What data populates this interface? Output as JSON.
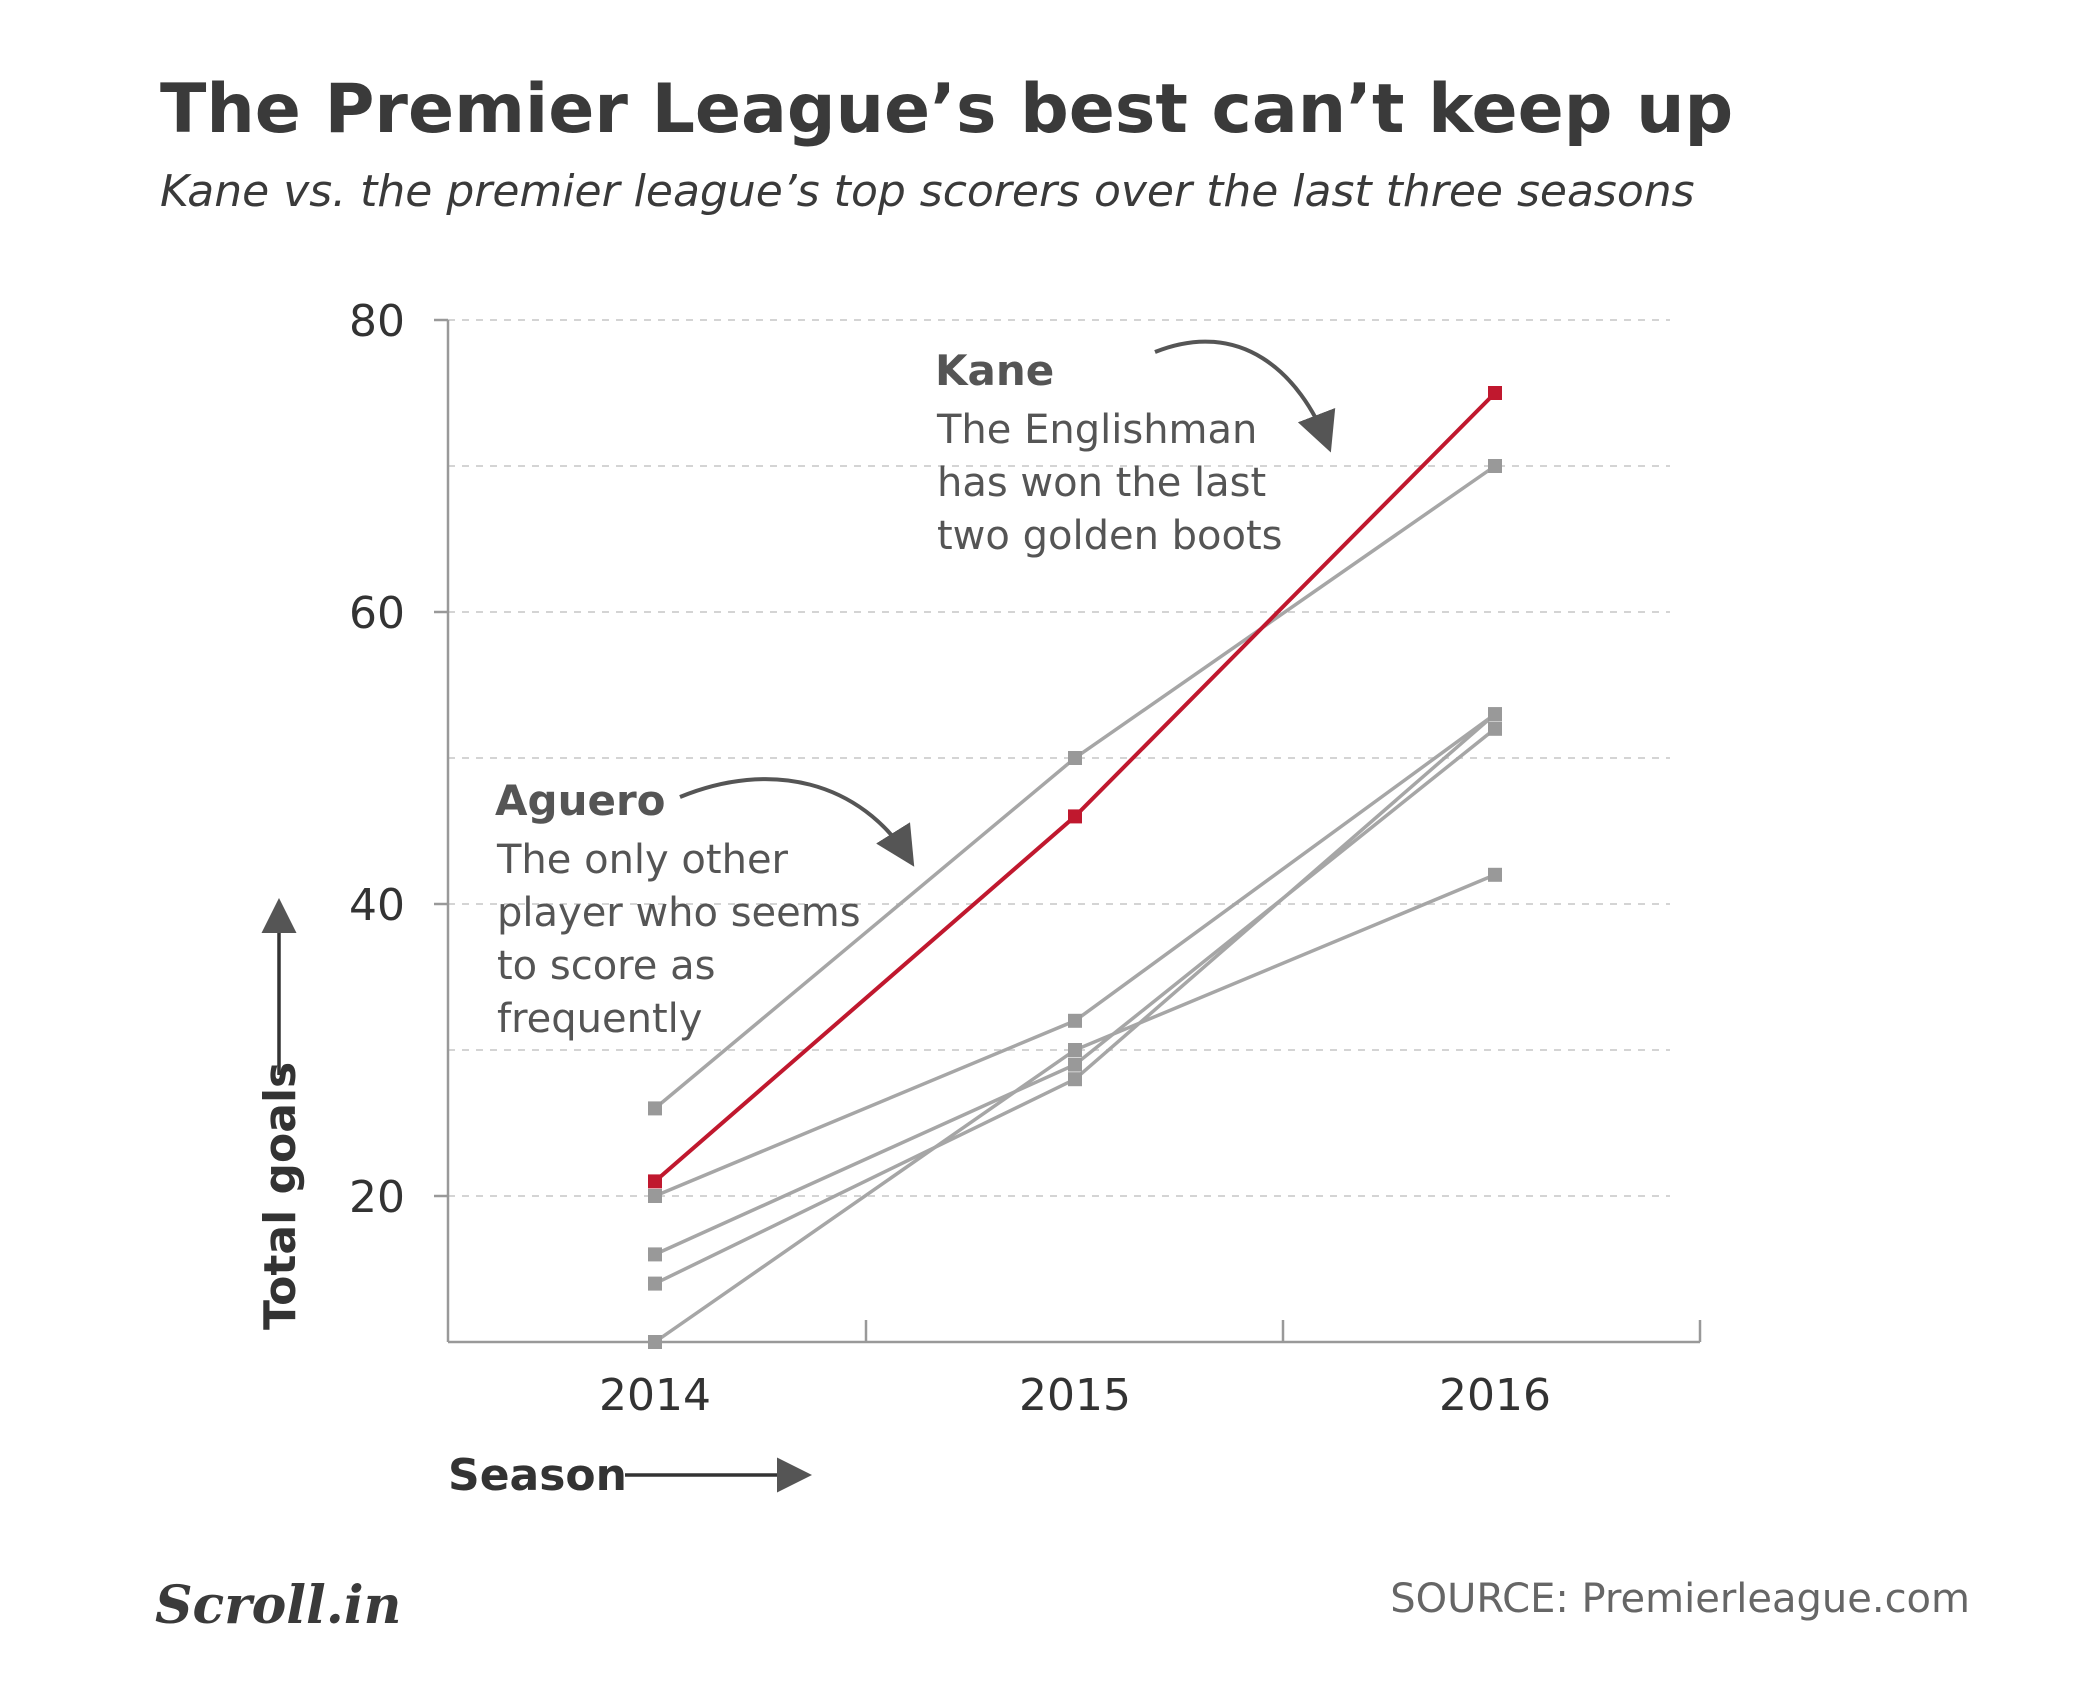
{
  "header": {
    "title": "The Premier League’s best can’t keep up",
    "subtitle": "Kane vs. the premier league’s top scorers over the last three seasons"
  },
  "chart_data": {
    "type": "line",
    "x": [
      "2014",
      "2015",
      "2016"
    ],
    "xlabel": "Season",
    "ylabel": "Total goals",
    "ylim": [
      10,
      80
    ],
    "yticks": [
      20,
      40,
      60,
      80
    ],
    "grid": true,
    "series": [
      {
        "name": "Kane",
        "values": [
          21,
          46,
          75
        ],
        "color": "#c0182e",
        "highlight": true
      },
      {
        "name": "Aguero",
        "values": [
          26,
          50,
          70
        ],
        "color": "#a6a6a6"
      },
      {
        "values": [
          20,
          32,
          53
        ],
        "color": "#a6a6a6"
      },
      {
        "values": [
          16,
          29,
          52
        ],
        "color": "#a6a6a6"
      },
      {
        "values": [
          14,
          28,
          53
        ],
        "color": "#a6a6a6"
      },
      {
        "values": [
          10,
          30,
          42
        ],
        "color": "#a6a6a6"
      }
    ],
    "annotations": [
      {
        "name": "Kane",
        "lines": [
          "The Englishman",
          "has won the last",
          "two golden boots"
        ]
      },
      {
        "name": "Aguero",
        "lines": [
          "The only other",
          "player who seems",
          "to score as",
          "frequently"
        ]
      }
    ]
  },
  "footer": {
    "logo": "Scroll.in",
    "source": "SOURCE: Premierleague.com"
  },
  "colors": {
    "highlight": "#c0182e",
    "other": "#a6a6a6",
    "text": "#3a3a3a"
  }
}
